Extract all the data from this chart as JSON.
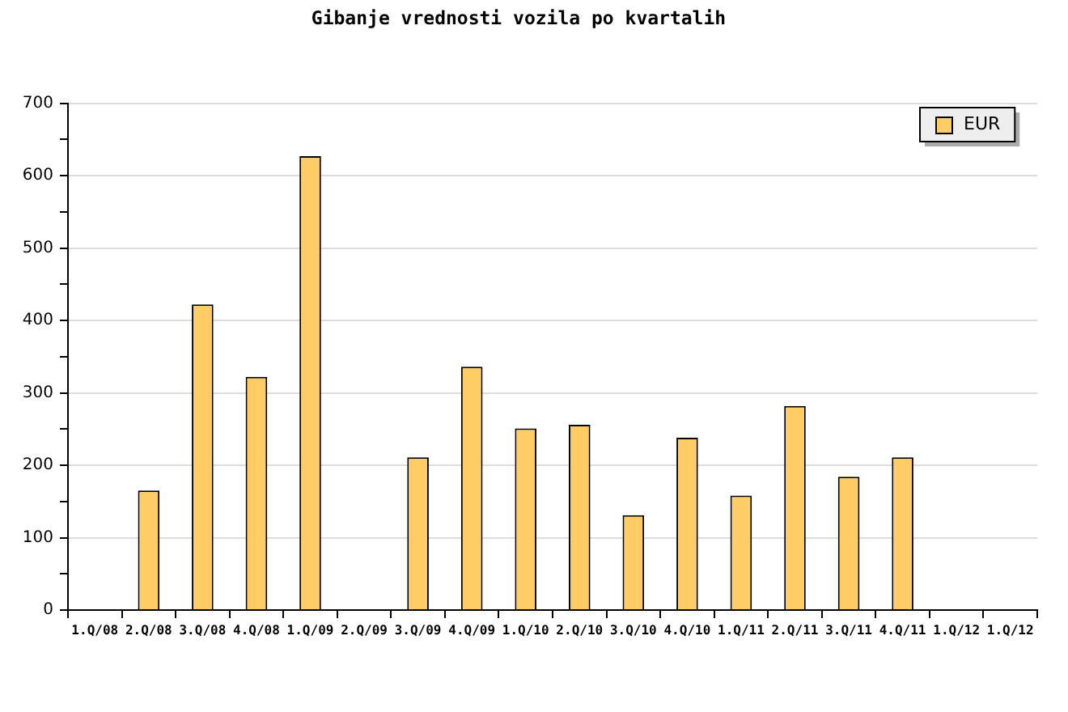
{
  "chart_data": {
    "type": "bar",
    "title": "Gibanje vrednosti vozila po kvartalih",
    "categories": [
      "1.Q/08",
      "2.Q/08",
      "3.Q/08",
      "4.Q/08",
      "1.Q/09",
      "2.Q/09",
      "3.Q/09",
      "4.Q/09",
      "1.Q/10",
      "2.Q/10",
      "3.Q/10",
      "4.Q/10",
      "1.Q/11",
      "2.Q/11",
      "3.Q/11",
      "4.Q/11",
      "1.Q/12",
      "1.Q/12"
    ],
    "series": [
      {
        "name": "EUR",
        "color": "#ffcc66",
        "values": [
          null,
          165,
          422,
          322,
          627,
          null,
          211,
          336,
          251,
          256,
          131,
          238,
          158,
          282,
          184,
          211,
          null,
          null
        ]
      }
    ],
    "ylim": [
      0,
      700
    ],
    "yticks": [
      0,
      {
        "value": 50,
        "label": null
      },
      100,
      {
        "value": 150,
        "label": null
      },
      200,
      {
        "value": 250,
        "label": null
      },
      300,
      {
        "value": 350,
        "label": null
      },
      400,
      {
        "value": 450,
        "label": null
      },
      500,
      {
        "value": 550,
        "label": null
      },
      600,
      {
        "value": 650,
        "label": null
      },
      700
    ],
    "grid": "y",
    "legend": "top right"
  }
}
